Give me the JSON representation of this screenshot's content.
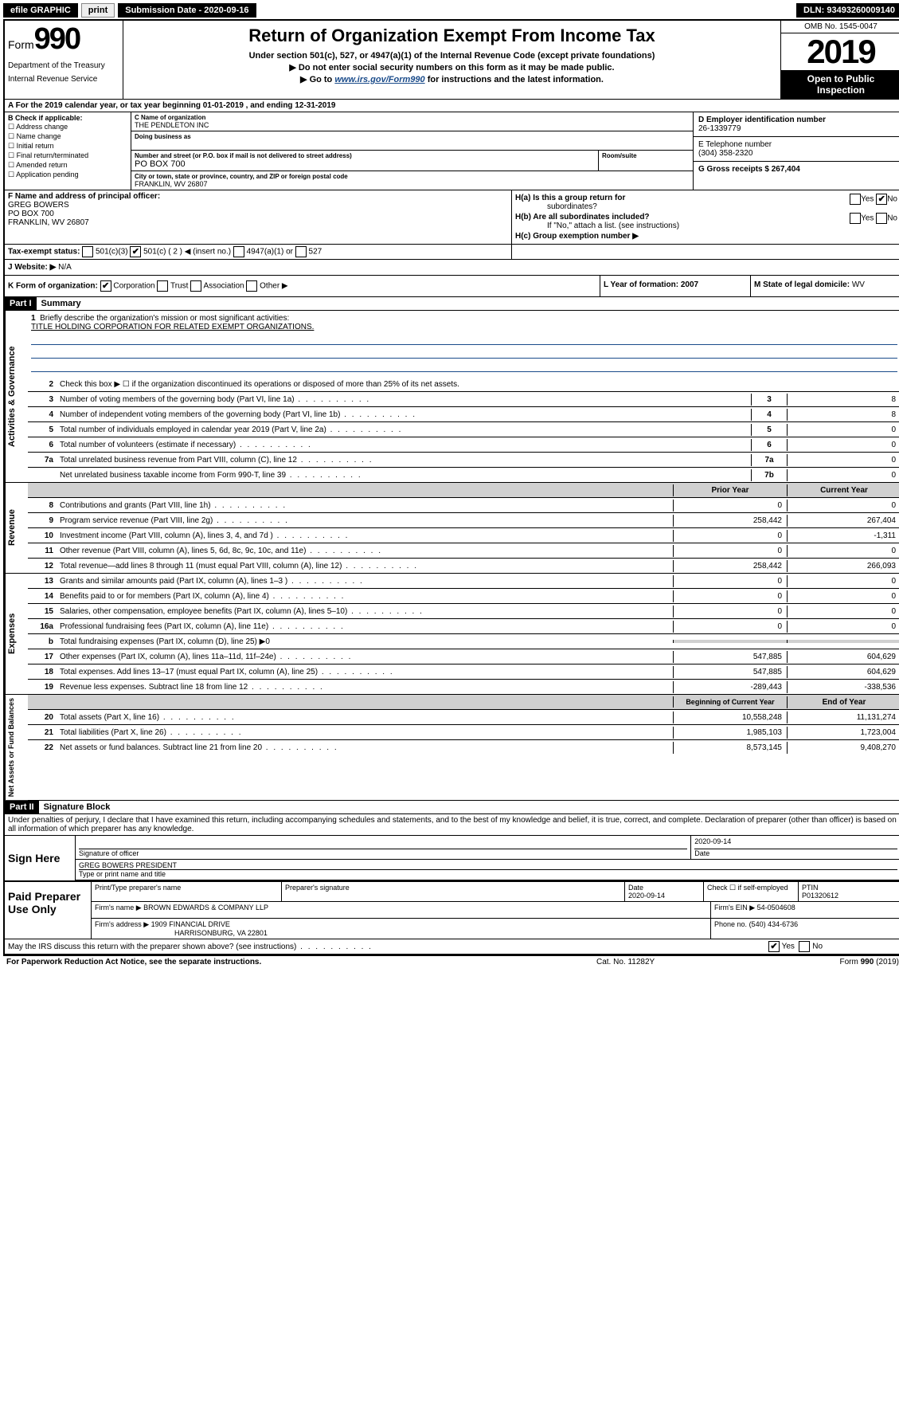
{
  "topbar": {
    "efile": "efile GRAPHIC",
    "print": "print",
    "sub_label": "Submission Date - 2020-09-16",
    "dln": "DLN: 93493260009140"
  },
  "header": {
    "form_prefix": "Form",
    "form_number": "990",
    "title": "Return of Organization Exempt From Income Tax",
    "subtitle1": "Under section 501(c), 527, or 4947(a)(1) of the Internal Revenue Code (except private foundations)",
    "subtitle2": "▶ Do not enter social security numbers on this form as it may be made public.",
    "subtitle3_pre": "▶ Go to ",
    "subtitle3_link": "www.irs.gov/Form990",
    "subtitle3_post": " for instructions and the latest information.",
    "dept1": "Department of the Treasury",
    "dept2": "Internal Revenue Service",
    "omb": "OMB No. 1545-0047",
    "year": "2019",
    "open1": "Open to Public",
    "open2": "Inspection"
  },
  "row_a": "A  For the 2019 calendar year, or tax year beginning 01-01-2019    , and ending 12-31-2019",
  "box_b": {
    "label": "B Check if applicable:",
    "opts": [
      "Address change",
      "Name change",
      "Initial return",
      "Final return/terminated",
      "Amended return",
      "Application pending"
    ]
  },
  "box_c": {
    "name_label": "C Name of organization",
    "name": "THE PENDLETON INC",
    "dba_label": "Doing business as",
    "addr_label": "Number and street (or P.O. box if mail is not delivered to street address)",
    "room_label": "Room/suite",
    "addr": "PO BOX 700",
    "city_label": "City or town, state or province, country, and ZIP or foreign postal code",
    "city": "FRANKLIN, WV  26807"
  },
  "box_d": {
    "ein_label": "D Employer identification number",
    "ein": "26-1339779",
    "phone_label": "E Telephone number",
    "phone": "(304) 358-2320",
    "gross_label": "G Gross receipts $ 267,404"
  },
  "box_f": {
    "label": "F  Name and address of principal officer:",
    "name": "GREG BOWERS",
    "addr1": "PO BOX 700",
    "addr2": "FRANKLIN, WV  26807"
  },
  "box_h": {
    "ha": "H(a)  Is this a group return for",
    "ha2": "subordinates?",
    "hb": "H(b)  Are all subordinates included?",
    "hb2": "If \"No,\" attach a list. (see instructions)",
    "hc": "H(c)  Group exemption number ▶"
  },
  "tax_status": {
    "label": "Tax-exempt status:",
    "opt1": "501(c)(3)",
    "opt2": "501(c) ( 2 ) ◀ (insert no.)",
    "opt3": "4947(a)(1) or",
    "opt4": "527"
  },
  "row_j": {
    "label": "J   Website: ▶",
    "value": "N/A"
  },
  "row_k": {
    "label": "K Form of organization:",
    "corp": "Corporation",
    "trust": "Trust",
    "assoc": "Association",
    "other": "Other ▶",
    "year_label": "L Year of formation: 2007",
    "state_label": "M State of legal domicile:",
    "state": "WV"
  },
  "part1": {
    "header": "Part I",
    "title": "Summary",
    "q1": "Briefly describe the organization's mission or most significant activities:",
    "q1_text": "TITLE HOLDING CORPORATION FOR RELATED EXEMPT ORGANIZATIONS.",
    "q2": "Check this box ▶ ☐  if the organization discontinued its operations or disposed of more than 25% of its net assets.",
    "sides": {
      "gov": "Activities & Governance",
      "rev": "Revenue",
      "exp": "Expenses",
      "net": "Net Assets or Fund Balances"
    },
    "lines": [
      {
        "n": "3",
        "t": "Number of voting members of the governing body (Part VI, line 1a)",
        "box": "3",
        "v": "8"
      },
      {
        "n": "4",
        "t": "Number of independent voting members of the governing body (Part VI, line 1b)",
        "box": "4",
        "v": "8"
      },
      {
        "n": "5",
        "t": "Total number of individuals employed in calendar year 2019 (Part V, line 2a)",
        "box": "5",
        "v": "0"
      },
      {
        "n": "6",
        "t": "Total number of volunteers (estimate if necessary)",
        "box": "6",
        "v": "0"
      },
      {
        "n": "7a",
        "t": "Total unrelated business revenue from Part VIII, column (C), line 12",
        "box": "7a",
        "v": "0"
      },
      {
        "n": "",
        "t": "Net unrelated business taxable income from Form 990-T, line 39",
        "box": "7b",
        "v": "0"
      }
    ],
    "pycy_header": {
      "py": "Prior Year",
      "cy": "Current Year"
    },
    "rev_lines": [
      {
        "n": "8",
        "t": "Contributions and grants (Part VIII, line 1h)",
        "py": "0",
        "cy": "0"
      },
      {
        "n": "9",
        "t": "Program service revenue (Part VIII, line 2g)",
        "py": "258,442",
        "cy": "267,404"
      },
      {
        "n": "10",
        "t": "Investment income (Part VIII, column (A), lines 3, 4, and 7d )",
        "py": "0",
        "cy": "-1,311"
      },
      {
        "n": "11",
        "t": "Other revenue (Part VIII, column (A), lines 5, 6d, 8c, 9c, 10c, and 11e)",
        "py": "0",
        "cy": "0"
      },
      {
        "n": "12",
        "t": "Total revenue—add lines 8 through 11 (must equal Part VIII, column (A), line 12)",
        "py": "258,442",
        "cy": "266,093"
      }
    ],
    "exp_lines": [
      {
        "n": "13",
        "t": "Grants and similar amounts paid (Part IX, column (A), lines 1–3 )",
        "py": "0",
        "cy": "0"
      },
      {
        "n": "14",
        "t": "Benefits paid to or for members (Part IX, column (A), line 4)",
        "py": "0",
        "cy": "0"
      },
      {
        "n": "15",
        "t": "Salaries, other compensation, employee benefits (Part IX, column (A), lines 5–10)",
        "py": "0",
        "cy": "0"
      },
      {
        "n": "16a",
        "t": "Professional fundraising fees (Part IX, column (A), line 11e)",
        "py": "0",
        "cy": "0"
      },
      {
        "n": "b",
        "t": "Total fundraising expenses (Part IX, column (D), line 25) ▶0",
        "py": "",
        "cy": "",
        "shaded": true
      },
      {
        "n": "17",
        "t": "Other expenses (Part IX, column (A), lines 11a–11d, 11f–24e)",
        "py": "547,885",
        "cy": "604,629"
      },
      {
        "n": "18",
        "t": "Total expenses. Add lines 13–17 (must equal Part IX, column (A), line 25)",
        "py": "547,885",
        "cy": "604,629"
      },
      {
        "n": "19",
        "t": "Revenue less expenses. Subtract line 18 from line 12",
        "py": "-289,443",
        "cy": "-338,536"
      }
    ],
    "net_header": {
      "py": "Beginning of Current Year",
      "cy": "End of Year"
    },
    "net_lines": [
      {
        "n": "20",
        "t": "Total assets (Part X, line 16)",
        "py": "10,558,248",
        "cy": "11,131,274"
      },
      {
        "n": "21",
        "t": "Total liabilities (Part X, line 26)",
        "py": "1,985,103",
        "cy": "1,723,004"
      },
      {
        "n": "22",
        "t": "Net assets or fund balances. Subtract line 21 from line 20",
        "py": "8,573,145",
        "cy": "9,408,270"
      }
    ]
  },
  "part2": {
    "header": "Part II",
    "title": "Signature Block",
    "perjury": "Under penalties of perjury, I declare that I have examined this return, including accompanying schedules and statements, and to the best of my knowledge and belief, it is true, correct, and complete. Declaration of preparer (other than officer) is based on all information of which preparer has any knowledge."
  },
  "sign": {
    "label": "Sign Here",
    "sig_label": "Signature of officer",
    "date": "2020-09-14",
    "date_label": "Date",
    "name": "GREG BOWERS PRESIDENT",
    "name_label": "Type or print name and title"
  },
  "paid": {
    "label": "Paid Preparer Use Only",
    "h1": "Print/Type preparer's name",
    "h2": "Preparer's signature",
    "h3": "Date",
    "date": "2020-09-14",
    "h4": "Check ☐ if self-employed",
    "h5": "PTIN",
    "ptin": "P01320612",
    "firm_label": "Firm's name    ▶",
    "firm": "BROWN EDWARDS & COMPANY LLP",
    "ein_label": "Firm's EIN ▶",
    "ein": "54-0504608",
    "addr_label": "Firm's address ▶",
    "addr1": "1909 FINANCIAL DRIVE",
    "addr2": "HARRISONBURG, VA  22801",
    "phone_label": "Phone no.",
    "phone": "(540) 434-6736"
  },
  "discuss": "May the IRS discuss this return with the preparer shown above? (see instructions)",
  "footer": {
    "left": "For Paperwork Reduction Act Notice, see the separate instructions.",
    "mid": "Cat. No. 11282Y",
    "right": "Form 990 (2019)"
  }
}
